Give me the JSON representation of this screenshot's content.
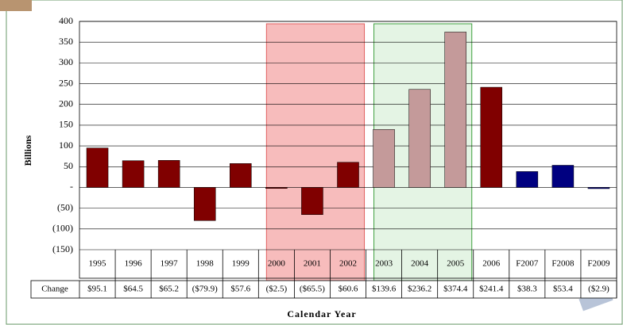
{
  "chart_data": {
    "type": "bar",
    "y_label": "Billions",
    "x_label": "Calendar Year",
    "table_row_label": "Change",
    "categories": [
      "1995",
      "1996",
      "1997",
      "1998",
      "1999",
      "2000",
      "2001",
      "2002",
      "2003",
      "2004",
      "2005",
      "2006",
      "F2007",
      "F2008",
      "F2009"
    ],
    "values": [
      95.1,
      64.5,
      65.2,
      -79.9,
      57.6,
      -2.5,
      -65.5,
      60.6,
      139.6,
      236.2,
      374.4,
      241.4,
      38.3,
      53.4,
      -2.9
    ],
    "value_labels": [
      "$95.1",
      "$64.5",
      "$65.2",
      "($79.9)",
      "$57.6",
      "($2.5)",
      "($65.5)",
      "$60.6",
      "$139.6",
      "$236.2",
      "$374.4",
      "$241.4",
      "$38.3",
      "$53.4",
      "($2.9)"
    ],
    "colors": [
      "#800000",
      "#800000",
      "#800000",
      "#800000",
      "#800000",
      "#800000",
      "#800000",
      "#800000",
      "#c49a9a",
      "#c49a9a",
      "#c49a9a",
      "#800000",
      "#000080",
      "#000080",
      "#000080"
    ],
    "ylim": [
      -150,
      400
    ],
    "yticks": [
      400,
      350,
      300,
      250,
      200,
      150,
      100,
      50,
      {
        "value": 0,
        "label": "-"
      },
      {
        "value": -50,
        "label": "(50)"
      },
      {
        "value": -100,
        "label": "(100)"
      },
      {
        "value": -150,
        "label": "(150)"
      }
    ],
    "grid": true
  }
}
